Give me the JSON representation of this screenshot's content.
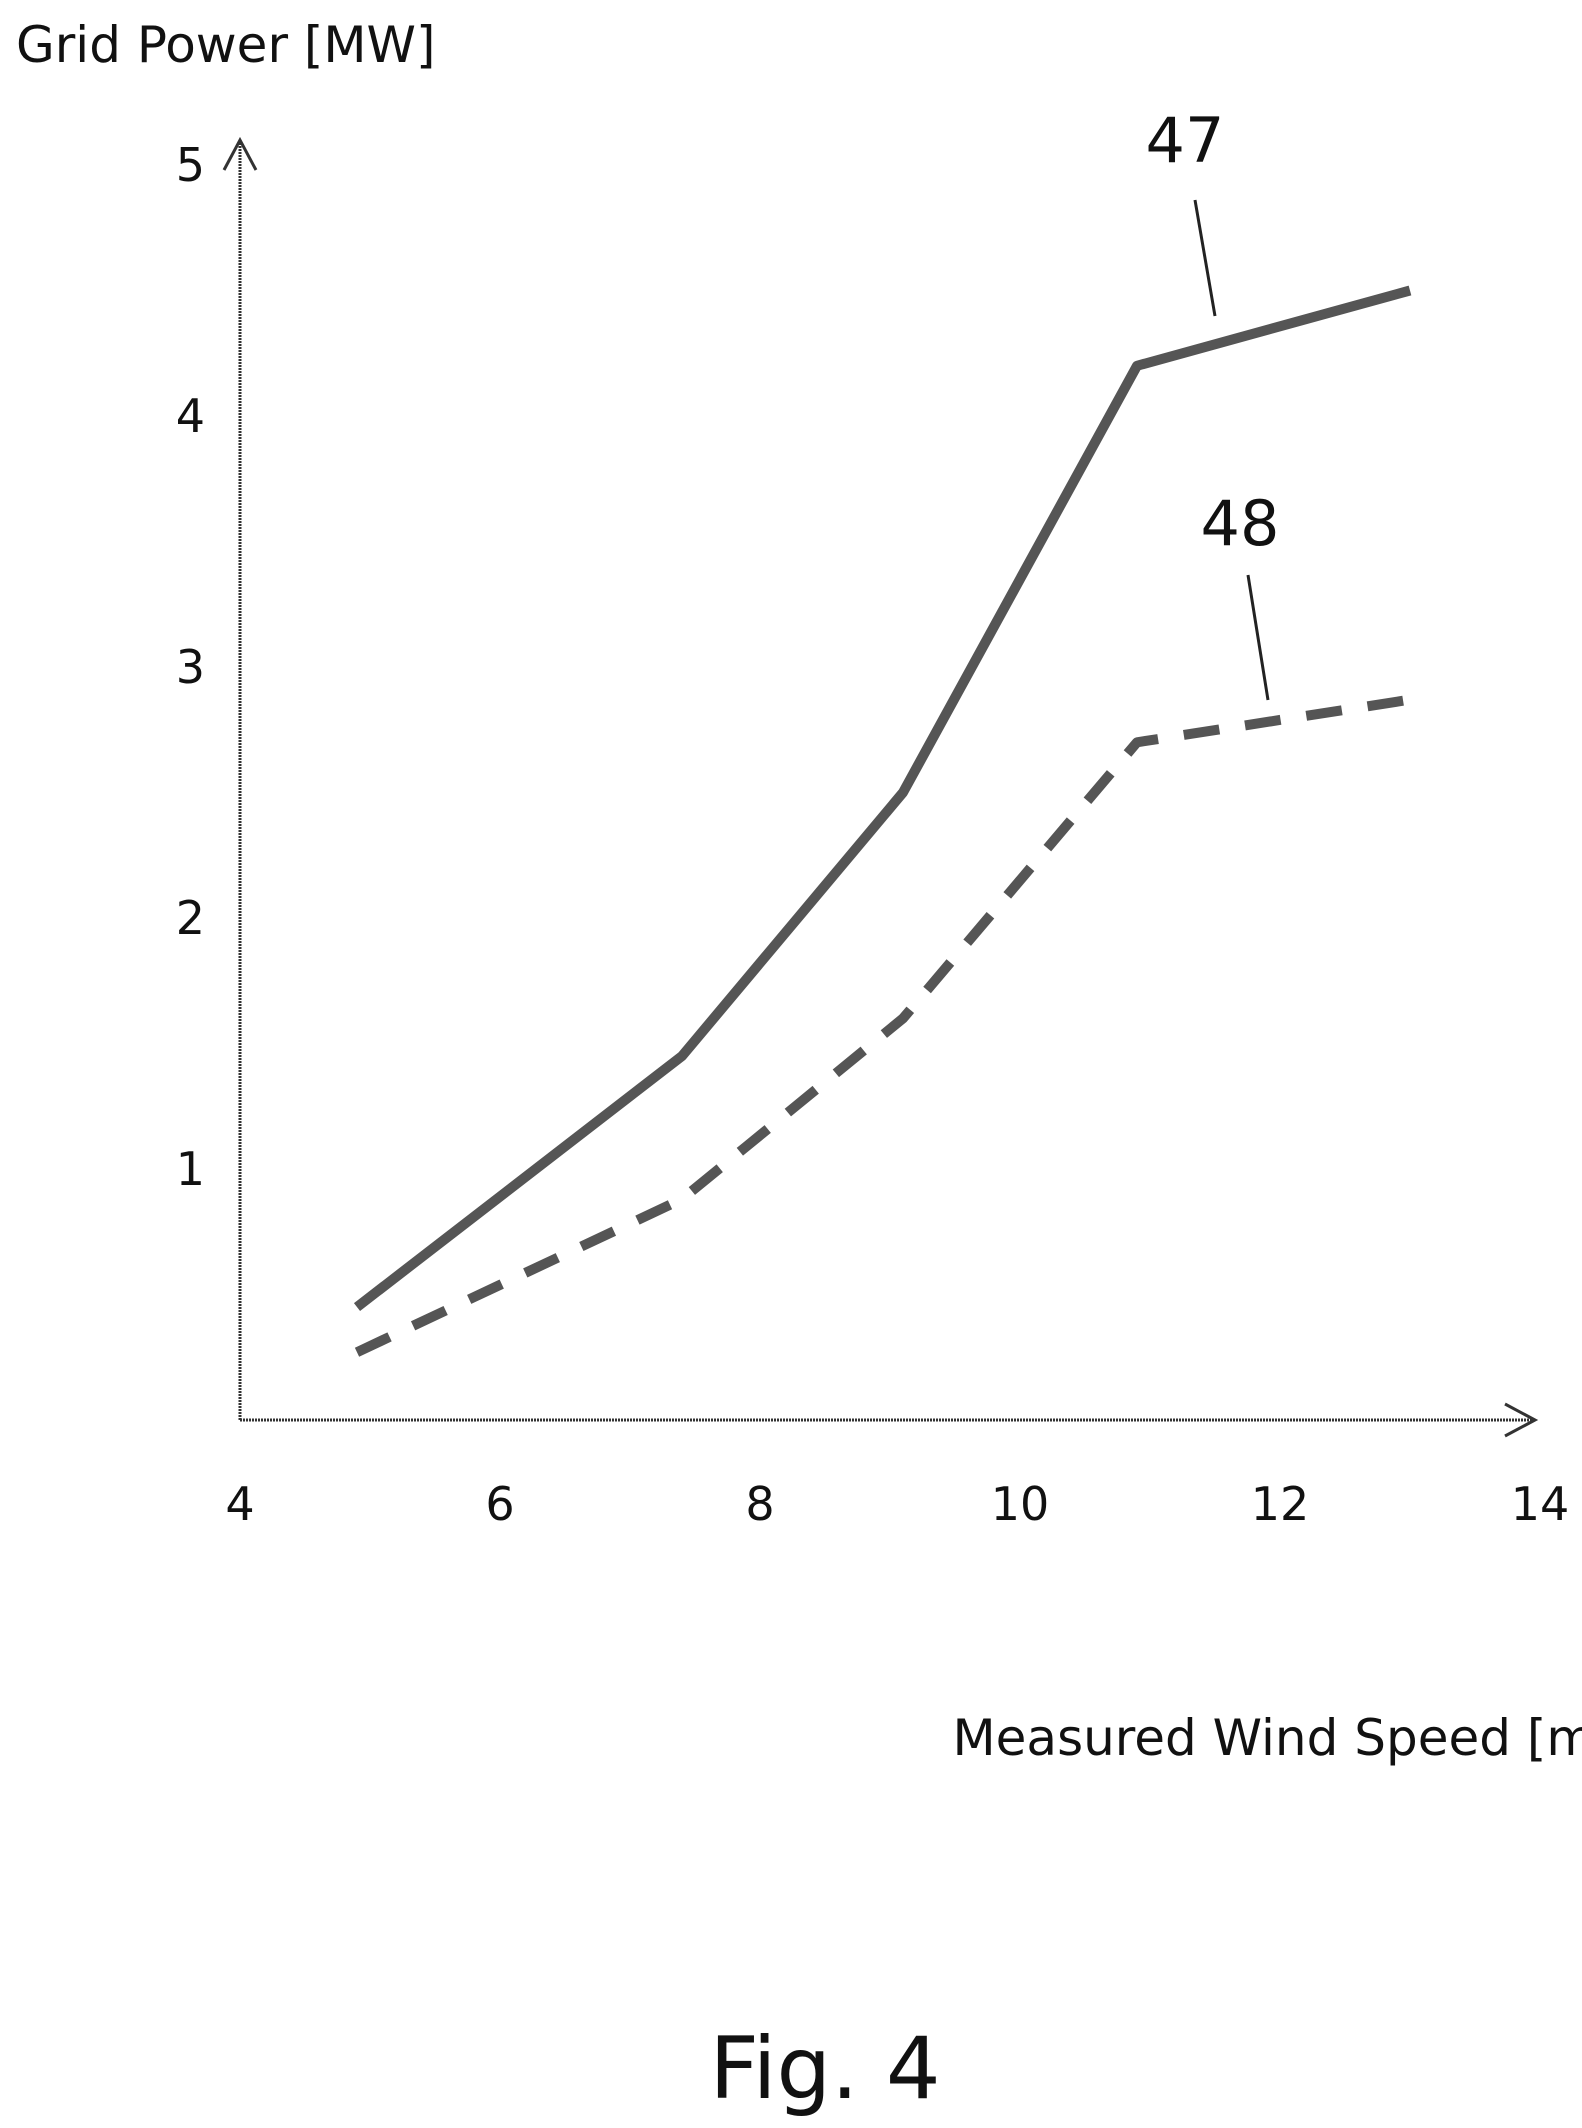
{
  "chart_data": {
    "type": "line",
    "title": "",
    "xlabel": "Measured Wind Speed [m/s]",
    "ylabel": "Grid Power [MW]",
    "xlim": [
      4,
      14
    ],
    "ylim": [
      0,
      5
    ],
    "x_ticks": [
      "4",
      "6",
      "8",
      "10",
      "12",
      "14"
    ],
    "y_ticks": [
      "1",
      "2",
      "3",
      "4",
      "5"
    ],
    "grid": false,
    "series": [
      {
        "name": "47",
        "style": "solid",
        "x": [
          4.9,
          7.4,
          9.1,
          10.9,
          13.0
        ],
        "y": [
          0.45,
          1.45,
          2.5,
          4.2,
          4.5
        ]
      },
      {
        "name": "48",
        "style": "dashed",
        "x": [
          4.9,
          7.4,
          9.1,
          10.9,
          13.0
        ],
        "y": [
          0.27,
          0.88,
          1.6,
          2.7,
          2.87
        ]
      }
    ],
    "annotations": [
      {
        "text": "47",
        "series": 0
      },
      {
        "text": "48",
        "series": 1
      }
    ]
  },
  "caption": "Fig. 4"
}
